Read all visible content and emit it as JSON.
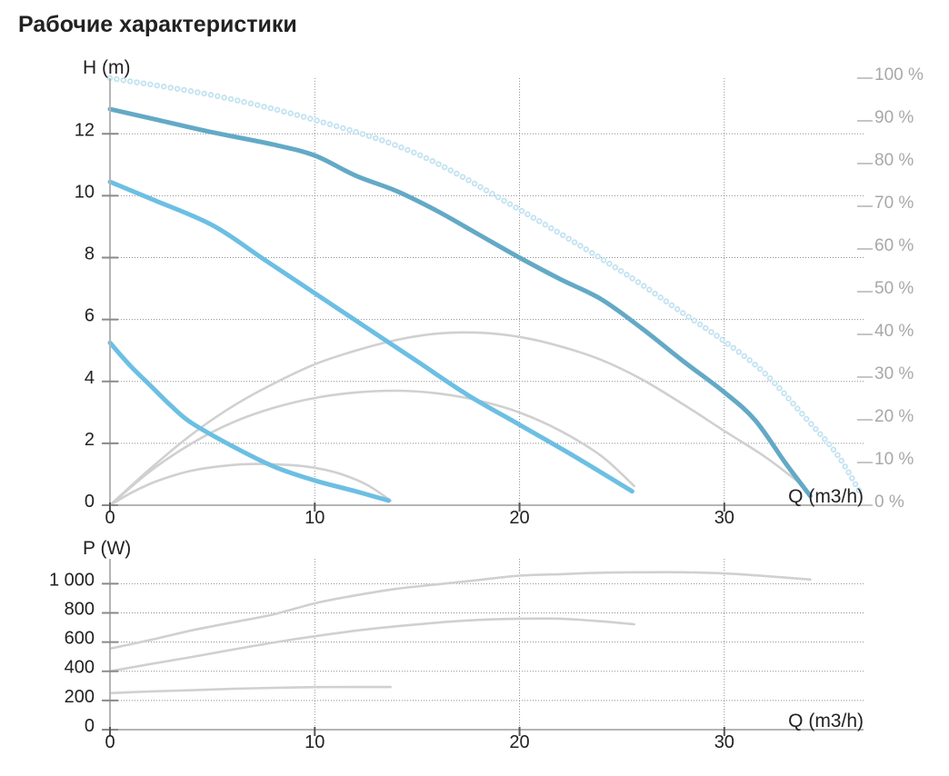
{
  "title": "Рабочие характеристики",
  "colors": {
    "axis": "#b5b5b5",
    "grid": "#8f8f8f",
    "text": "#222222",
    "text_secondary": "#a8a8a8",
    "white": "#ffffff"
  },
  "chart_data": [
    {
      "type": "line",
      "xlabel": "Q (m3/h)",
      "ylabel": "H (m)",
      "xlim": [
        0,
        36.8
      ],
      "ylim": [
        0,
        13.8
      ],
      "y2lim": [
        0,
        100
      ],
      "grid": true,
      "xticks": [
        0,
        10,
        20,
        30
      ],
      "xtick_labels": [
        "0",
        "10",
        "20",
        "30"
      ],
      "yticks": [
        0,
        2,
        4,
        6,
        8,
        10,
        12
      ],
      "ytick_labels": [
        "0",
        "2",
        "4",
        "6",
        "8",
        "10",
        "12"
      ],
      "y2ticks": [
        0,
        10,
        20,
        30,
        40,
        50,
        60,
        70,
        80,
        90,
        100
      ],
      "y2tick_labels": [
        "0 %",
        "10 %",
        "20 %",
        "30 %",
        "40 %",
        "50 %",
        "60 %",
        "70 %",
        "80 %",
        "90 %",
        "100 %"
      ],
      "series": [
        {
          "color": "#c2e2f1",
          "dotted": true,
          "x": [
            0,
            5,
            10,
            15,
            20,
            25,
            28,
            30,
            32,
            34,
            35.5,
            36.6
          ],
          "y": [
            13.8,
            13.25,
            12.45,
            11.35,
            9.55,
            7.55,
            6.2,
            5.3,
            4.25,
            2.8,
            1.65,
            0.45
          ]
        },
        {
          "color": "#63a9c6",
          "dotted": false,
          "x": [
            0,
            2,
            5,
            8,
            10,
            12,
            14,
            16,
            18,
            20,
            22,
            24,
            26,
            28,
            30,
            31.5,
            33,
            34.2
          ],
          "y": [
            12.8,
            12.5,
            12.05,
            11.65,
            11.3,
            10.65,
            10.15,
            9.5,
            8.75,
            8.0,
            7.3,
            6.65,
            5.7,
            4.65,
            3.65,
            2.75,
            1.35,
            0.3
          ]
        },
        {
          "color": "#6cbfe3",
          "dotted": false,
          "x": [
            0,
            2,
            5,
            7.5,
            10,
            12.5,
            15,
            17.5,
            20,
            22.5,
            25.5
          ],
          "y": [
            10.45,
            9.9,
            9.05,
            7.95,
            6.85,
            5.75,
            4.65,
            3.55,
            2.6,
            1.65,
            0.45
          ]
        },
        {
          "color": "#6cbfe3",
          "dotted": false,
          "x": [
            0,
            1,
            2,
            3,
            4,
            6,
            8,
            10,
            12,
            13.6
          ],
          "y": [
            5.25,
            4.5,
            3.85,
            3.2,
            2.65,
            1.9,
            1.25,
            0.8,
            0.45,
            0.15
          ]
        }
      ],
      "y2_series": [
        {
          "color": "#d0d0d0",
          "x": [
            0,
            2,
            4,
            6,
            8,
            10,
            12,
            14,
            16,
            18,
            20,
            22,
            24,
            26,
            28,
            30,
            32,
            33.6
          ],
          "y": [
            0,
            8.7,
            16.6,
            23.2,
            28.5,
            33,
            36.2,
            38.7,
            40.2,
            40.4,
            39.4,
            37.2,
            34,
            29.4,
            23.6,
            17.4,
            11.3,
            5.5
          ]
        },
        {
          "color": "#d0d0d0",
          "x": [
            0,
            2,
            4,
            6,
            8,
            10,
            12,
            14,
            16,
            18,
            20,
            22,
            24,
            25.6
          ],
          "y": [
            0,
            8.1,
            14.5,
            19.4,
            22.8,
            25.1,
            26.4,
            26.8,
            26.2,
            24.5,
            21.7,
            17.4,
            11.5,
            4.5
          ]
        },
        {
          "color": "#d0d0d0",
          "x": [
            0,
            1,
            2,
            3,
            4,
            5,
            6.5,
            8,
            9.5,
            11,
            12.5,
            13.7
          ],
          "y": [
            0,
            2.8,
            5.1,
            6.8,
            8.1,
            8.9,
            9.6,
            9.6,
            9.1,
            7.7,
            4.9,
            1.1
          ]
        }
      ]
    },
    {
      "type": "line",
      "xlabel": "Q (m3/h)",
      "ylabel": "P (W)",
      "xlim": [
        0,
        36.8
      ],
      "ylim": [
        0,
        1170
      ],
      "grid": true,
      "xticks": [
        0,
        10,
        20,
        30
      ],
      "xtick_labels": [
        "0",
        "10",
        "20",
        "30"
      ],
      "yticks": [
        0,
        200,
        400,
        600,
        800,
        1000
      ],
      "ytick_labels": [
        "0",
        "200",
        "400",
        "600",
        "800",
        "1 000"
      ],
      "series": [
        {
          "color": "#d0d0d0",
          "dotted": false,
          "x": [
            0,
            2,
            4,
            6,
            8,
            10,
            12,
            14,
            16,
            18,
            20,
            22,
            24,
            26,
            28,
            30,
            32,
            34.2
          ],
          "y": [
            555,
            615,
            680,
            735,
            790,
            865,
            920,
            965,
            995,
            1025,
            1055,
            1065,
            1075,
            1078,
            1078,
            1070,
            1052,
            1028
          ]
        },
        {
          "color": "#d0d0d0",
          "dotted": false,
          "x": [
            0,
            2,
            4,
            6,
            8,
            10,
            12,
            14,
            16,
            18,
            20,
            22,
            24,
            25.6
          ],
          "y": [
            400,
            450,
            498,
            548,
            597,
            640,
            678,
            708,
            733,
            752,
            760,
            760,
            742,
            722
          ]
        },
        {
          "color": "#d0d0d0",
          "dotted": false,
          "x": [
            0,
            2,
            4,
            6,
            8,
            10,
            12,
            13.7
          ],
          "y": [
            250,
            262,
            270,
            280,
            286,
            291,
            292,
            292
          ]
        }
      ]
    }
  ]
}
